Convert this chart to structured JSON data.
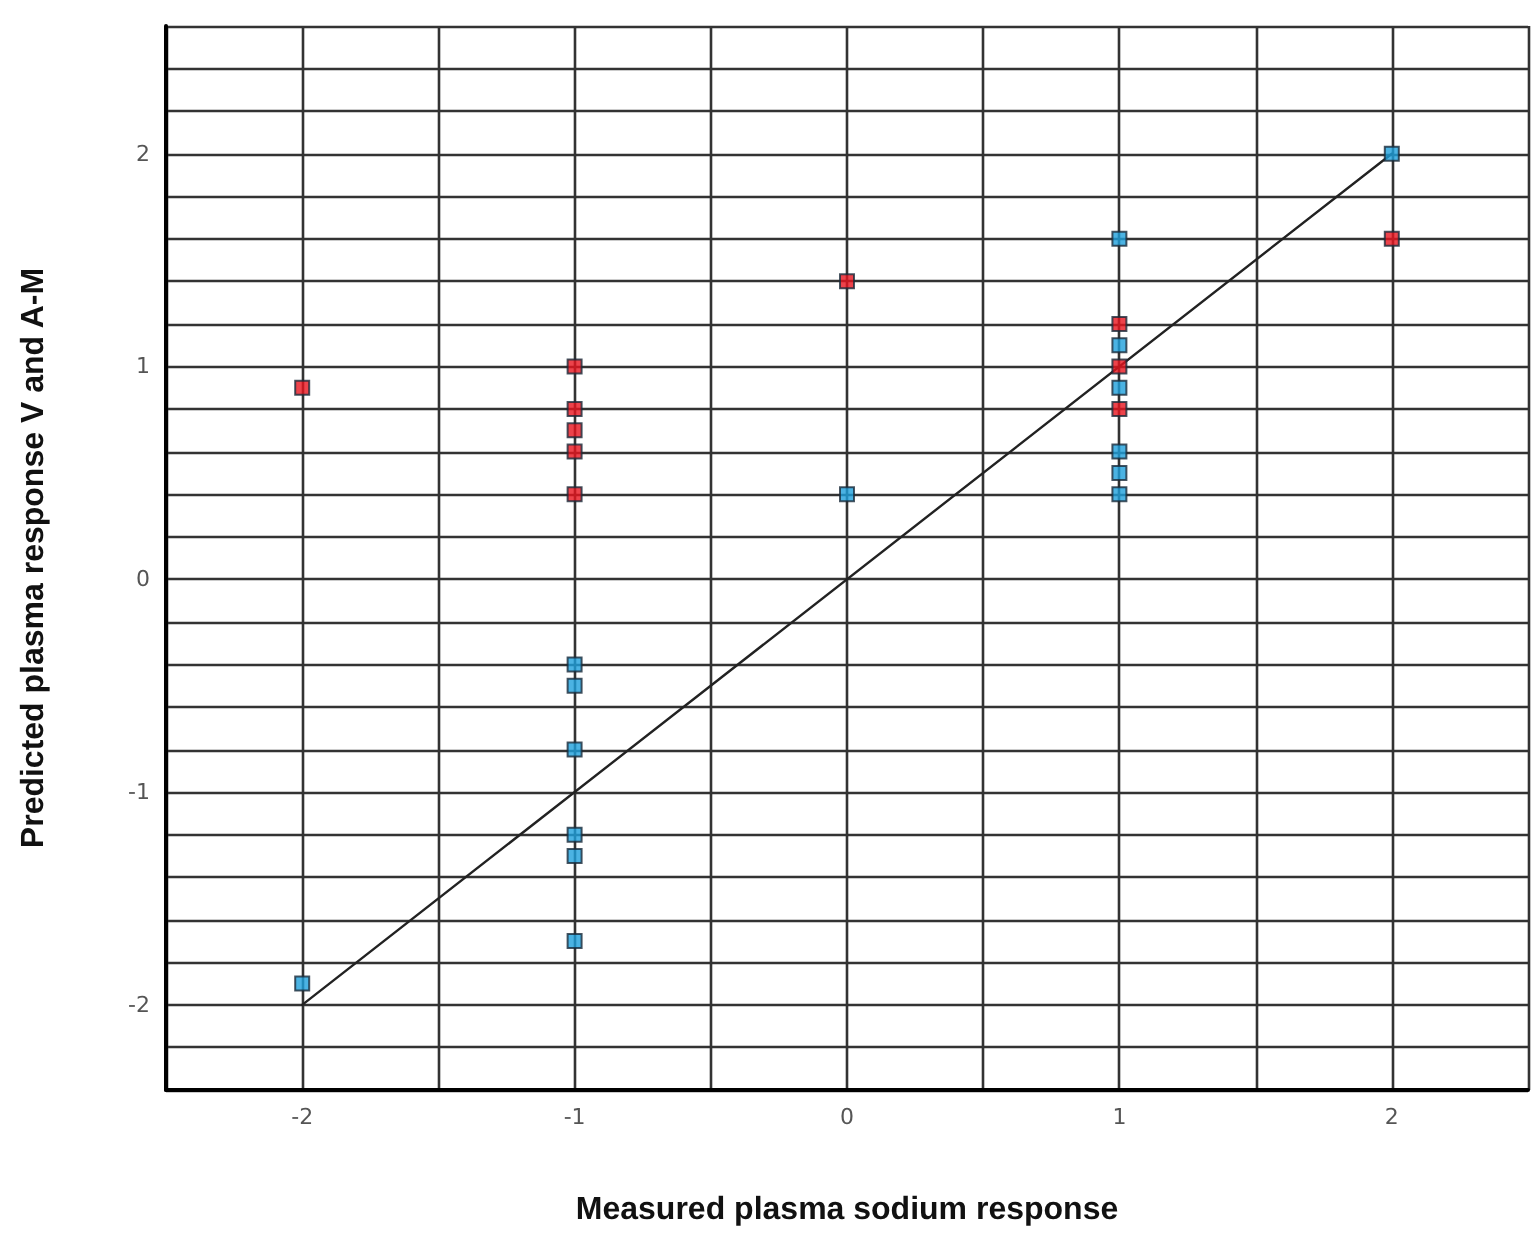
{
  "chart_data": {
    "type": "scatter",
    "xlabel": "Measured plasma sodium response",
    "ylabel": "Predicted plasma response V and A-M",
    "xlim": [
      -2.5,
      2.5
    ],
    "xticks": [
      {
        "value": -2.5,
        "label": null
      },
      -2,
      {
        "value": -1.5,
        "label": null
      },
      -1,
      {
        "value": -0.5,
        "label": null
      },
      0,
      {
        "value": 0.5,
        "label": null
      },
      1,
      {
        "value": 1.5,
        "label": null
      },
      2,
      {
        "value": 2.5,
        "label": null
      }
    ],
    "ylim": [
      -2.4,
      2.6
    ],
    "yticks": [
      {
        "value": -2.4,
        "label": null
      },
      {
        "value": -2.2,
        "label": null
      },
      -2,
      {
        "value": -1.8,
        "label": null
      },
      {
        "value": -1.6,
        "label": null
      },
      {
        "value": -1.4,
        "label": null
      },
      {
        "value": -1.2,
        "label": null
      },
      -1,
      {
        "value": -0.8,
        "label": null
      },
      {
        "value": -0.6,
        "label": null
      },
      {
        "value": -0.4,
        "label": null
      },
      {
        "value": -0.2,
        "label": null
      },
      0,
      {
        "value": 0.2,
        "label": null
      },
      {
        "value": 0.4,
        "label": null
      },
      {
        "value": 0.6,
        "label": null
      },
      {
        "value": 0.8,
        "label": null
      },
      1,
      {
        "value": 1.2,
        "label": null
      },
      {
        "value": 1.4,
        "label": null
      },
      {
        "value": 1.6,
        "label": null
      },
      {
        "value": 1.8,
        "label": null
      },
      2,
      {
        "value": 2.2,
        "label": null
      },
      {
        "value": 2.4,
        "label": null
      },
      {
        "value": 2.6,
        "label": null
      }
    ],
    "grid": true,
    "marker": "square",
    "series": [
      {
        "type": "line",
        "color": "#222222",
        "marker": "none",
        "line_style": "solid",
        "x": [
          -2,
          2
        ],
        "values": [
          -2,
          2
        ]
      },
      {
        "color": "#e8141e",
        "x": [
          -2,
          -1,
          -1,
          -1,
          -1,
          -1,
          0,
          1,
          1,
          1,
          2
        ],
        "values": [
          0.9,
          1.0,
          0.8,
          0.7,
          0.6,
          0.4,
          1.4,
          1.2,
          1.0,
          0.8,
          1.6
        ]
      },
      {
        "color": "#1ea0dc",
        "x": [
          -2,
          -1,
          -1,
          -1,
          -1,
          -1,
          -1,
          0,
          1,
          1,
          1,
          1,
          1,
          1,
          2
        ],
        "values": [
          -1.9,
          -0.4,
          -0.5,
          -0.8,
          -1.2,
          -1.3,
          -1.7,
          0.4,
          1.6,
          1.1,
          0.9,
          0.6,
          0.5,
          0.4,
          2.0
        ]
      }
    ]
  }
}
